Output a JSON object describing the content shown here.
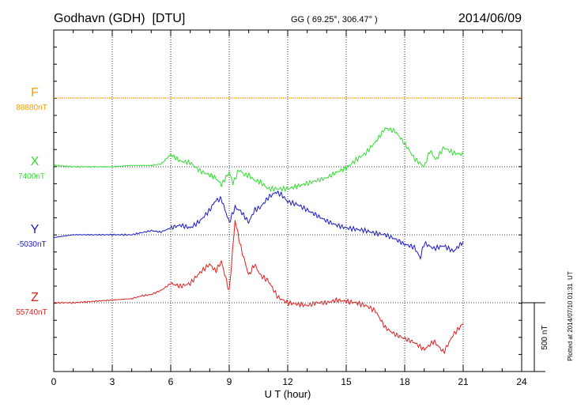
{
  "header": {
    "station": "Godhavn (GDH)  [DTU]",
    "coords": "GG ( 69.25°, 306.47° )",
    "date": "2014/06/09"
  },
  "side_note": "Plotted at 2014/07/10 01:31  UT",
  "scale_label": "500 nT",
  "chart_data": {
    "type": "line",
    "title": "Godhavn (GDH)  [DTU]",
    "xlabel": "U T (hour)",
    "ylabel": "",
    "xlim": [
      0,
      24
    ],
    "xticks": [
      0,
      3,
      6,
      9,
      12,
      15,
      18,
      21,
      24
    ],
    "grid": true,
    "scale_bar_nT": 500,
    "series": [
      {
        "name": "F",
        "baseline_label": "88880nT",
        "color": "#f5a000",
        "x": [
          0,
          21
        ],
        "y": [
          0,
          0
        ]
      },
      {
        "name": "X",
        "baseline_label": "7400nT",
        "color": "#33dd33",
        "x": [
          0,
          1,
          2,
          3,
          4,
          5,
          5.5,
          6,
          6.5,
          7,
          7.5,
          8,
          8.3,
          8.6,
          9,
          9.2,
          9.5,
          9.8,
          10,
          10.3,
          10.6,
          11,
          11.5,
          12,
          12.5,
          13,
          13.5,
          14,
          14.5,
          15,
          15.5,
          16,
          16.5,
          17,
          17.5,
          18,
          18.5,
          19,
          19.3,
          19.6,
          20,
          20.5,
          21
        ],
        "y": [
          10,
          0,
          0,
          0,
          10,
          10,
          20,
          90,
          40,
          30,
          -30,
          -60,
          -80,
          -130,
          -40,
          -120,
          -20,
          -60,
          -60,
          -100,
          -110,
          -160,
          -160,
          -160,
          -140,
          -120,
          -100,
          -80,
          -40,
          -10,
          50,
          100,
          180,
          280,
          260,
          170,
          60,
          0,
          120,
          50,
          140,
          100,
          90
        ]
      },
      {
        "name": "Y",
        "baseline_label": "-5030nT",
        "color": "#1a1acc",
        "x": [
          0,
          1,
          2,
          3,
          4,
          5,
          5.5,
          6,
          6.5,
          7,
          7.5,
          8,
          8.3,
          8.6,
          9,
          9.3,
          9.6,
          10,
          10.3,
          10.6,
          11,
          11.4,
          11.7,
          12,
          12.5,
          13,
          13.5,
          14,
          14.5,
          15,
          15.5,
          16,
          16.5,
          17,
          17.5,
          18,
          18.5,
          18.8,
          19,
          19.5,
          20,
          20.5,
          21
        ],
        "y": [
          -20,
          0,
          0,
          0,
          0,
          30,
          20,
          50,
          70,
          50,
          100,
          180,
          250,
          260,
          90,
          200,
          170,
          90,
          180,
          200,
          270,
          310,
          290,
          240,
          220,
          180,
          140,
          100,
          70,
          50,
          40,
          30,
          10,
          0,
          -30,
          -70,
          -90,
          -170,
          -60,
          -100,
          -80,
          -120,
          -50
        ]
      },
      {
        "name": "Z",
        "baseline_label": "55740nT",
        "color": "#e02020",
        "x": [
          0,
          1,
          2,
          3,
          4,
          4.5,
          5,
          5.5,
          6,
          6.5,
          7,
          7.5,
          8,
          8.3,
          8.6,
          9,
          9.3,
          9.6,
          10,
          10.3,
          10.6,
          11,
          11.5,
          12,
          12.5,
          13,
          13.5,
          14,
          14.5,
          15,
          15.5,
          16,
          16.5,
          17,
          17.5,
          18,
          18.5,
          19,
          19.5,
          20,
          20.5,
          21
        ],
        "y": [
          0,
          0,
          10,
          20,
          30,
          50,
          60,
          90,
          140,
          120,
          140,
          220,
          280,
          230,
          300,
          80,
          600,
          400,
          200,
          280,
          200,
          160,
          40,
          0,
          -10,
          -20,
          0,
          0,
          20,
          10,
          0,
          -20,
          -60,
          -180,
          -230,
          -260,
          -290,
          -340,
          -280,
          -360,
          -230,
          -150
        ]
      }
    ]
  }
}
